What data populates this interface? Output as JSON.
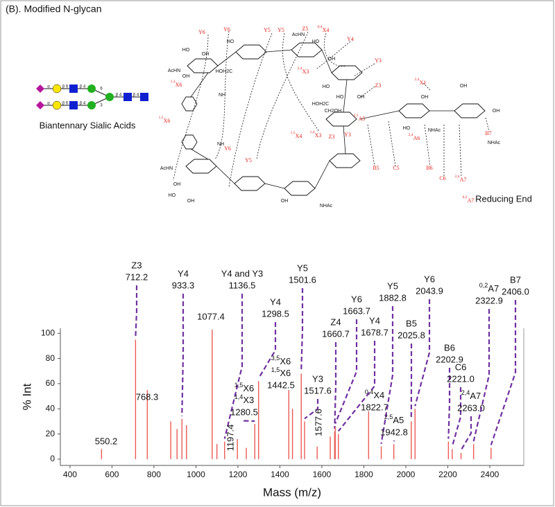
{
  "header": {
    "title": "(B). Modified N-glycan"
  },
  "glycan": {
    "caption": "Biantennary Sialic Acids",
    "linkages": [
      "α",
      "β 6",
      "β 4",
      "6",
      "α",
      "β 6",
      "β 4",
      "3",
      "β 4",
      "β 4"
    ]
  },
  "structure": {
    "reducing_end": "Reducing End",
    "fragment_labels": [
      "Y6",
      "Y6",
      "Y5",
      "Y5",
      "Z5",
      {
        "pre": "0,4",
        "text": "X4"
      },
      "Y4",
      "Y3",
      "Z3",
      {
        "pre": "2,4",
        "text": "X3"
      },
      {
        "pre": "2,4",
        "text": "X1"
      },
      {
        "pre": "1,3",
        "text": "X6"
      },
      {
        "pre": "1,5",
        "text": "X6"
      },
      "Y6",
      "Y5",
      {
        "pre": "1,5",
        "text": "X4"
      },
      {
        "pre": "1,4",
        "text": "X3"
      },
      "Z3",
      "Y3",
      {
        "pre": "2,5",
        "text": "A5"
      },
      "B5",
      "C5",
      "B6",
      {
        "pre": "2,4",
        "text": "A6"
      },
      "C6",
      {
        "pre": "2,4",
        "text": "A7"
      },
      {
        "pre": "0,2",
        "text": "A7"
      },
      "B7"
    ],
    "groups": [
      "HO",
      "OH",
      "AcHN",
      "OH",
      "NH",
      "HO",
      "HOH2C",
      "AcHN",
      "OH",
      "HO",
      "OH",
      "NH",
      "AcHN",
      "HO",
      "OH",
      "HO",
      "HO",
      "HOH2C",
      "CH2OH",
      "OH",
      "NHAc",
      "HO",
      "OH",
      "NHAc",
      "OH",
      "OH",
      "NHAc",
      "OH"
    ]
  },
  "chart_data": {
    "type": "bar",
    "x_label": "Mass (m/z)",
    "y_label": "% Int",
    "color": "#ea5a55",
    "leader_color": "#7030a0",
    "xlim": [
      354,
      2562
    ],
    "ylim": [
      -5,
      104
    ],
    "xticks": [
      400,
      600,
      800,
      1000,
      1200,
      1400,
      1600,
      1800,
      2000,
      2200,
      2400
    ],
    "yticks": [
      0,
      20,
      40,
      60,
      80,
      100
    ],
    "x": [
      550.2,
      712.2,
      768.3,
      880,
      910,
      933.3,
      955,
      1077.4,
      1100,
      1136.5,
      1197.4,
      1240,
      1280.5,
      1298.5,
      1442.5,
      1460,
      1501.6,
      1517.6,
      1577.6,
      1640,
      1660.7,
      1663.7,
      1678.7,
      1822.7,
      1882.8,
      1942.8,
      2025.8,
      2043.9,
      2202.9,
      2221,
      2263,
      2322.9,
      2406
    ],
    "values": [
      8,
      95,
      55,
      30,
      24,
      32,
      27,
      103,
      12,
      14,
      16,
      9,
      28,
      62,
      55,
      40,
      68,
      30,
      10,
      18,
      22,
      26,
      20,
      38,
      10,
      12,
      30,
      40,
      14,
      8,
      5,
      12,
      9
    ],
    "peak_labels": [
      {
        "lines": [
          "550.2"
        ]
      },
      {
        "lines": [
          "Z3",
          "712.2"
        ]
      },
      {
        "lines": [
          "768.3"
        ]
      },
      null,
      null,
      {
        "lines": [
          "Y4",
          "933.3"
        ]
      },
      null,
      {
        "lines": [
          "1077.4"
        ]
      },
      null,
      {
        "lines": [
          "Y4 and Y3",
          "1136.5"
        ]
      },
      {
        "lines": [
          "1197.4"
        ]
      },
      null,
      {
        "lines": [
          {
            "pre": "1,5",
            "text": "X6"
          },
          {
            "pre": "1,4",
            "text": "X3"
          },
          "1280.5"
        ]
      },
      {
        "lines": [
          "Y4",
          "1298.5"
        ]
      },
      {
        "lines": [
          {
            "pre": "3,5",
            "text": "X6"
          },
          {
            "pre": "1,5",
            "text": "X6"
          },
          "1442.5"
        ]
      },
      null,
      {
        "lines": [
          "Y5",
          "1501.6"
        ]
      },
      {
        "lines": [
          "Y3",
          "1517.6"
        ]
      },
      {
        "lines": [
          "1577.6"
        ]
      },
      null,
      {
        "lines": [
          "Z4",
          "1660.7"
        ]
      },
      {
        "lines": [
          "Y6",
          "1663.7"
        ]
      },
      {
        "lines": [
          "Y4",
          "1678.7"
        ]
      },
      {
        "lines": [
          {
            "pre": "0,4",
            "text": "X4"
          },
          "1822.7"
        ]
      },
      {
        "lines": [
          "Y5",
          "1882.8"
        ]
      },
      {
        "lines": [
          {
            "pre": "2,5",
            "text": "A5"
          },
          "1942.8"
        ]
      },
      {
        "lines": [
          "B5",
          "2025.8"
        ]
      },
      {
        "lines": [
          "Y6",
          "2043.9"
        ]
      },
      {
        "lines": [
          "B6",
          "2202.9"
        ]
      },
      {
        "lines": [
          "C6",
          "2221.0"
        ]
      },
      {
        "lines": [
          {
            "pre": "2,4",
            "text": "A7"
          },
          "2263.0"
        ]
      },
      {
        "lines": [
          {
            "pre": "0,2",
            "text": "A7"
          },
          "2322.9"
        ]
      },
      {
        "lines": [
          "B7",
          "2406.0"
        ]
      }
    ]
  }
}
